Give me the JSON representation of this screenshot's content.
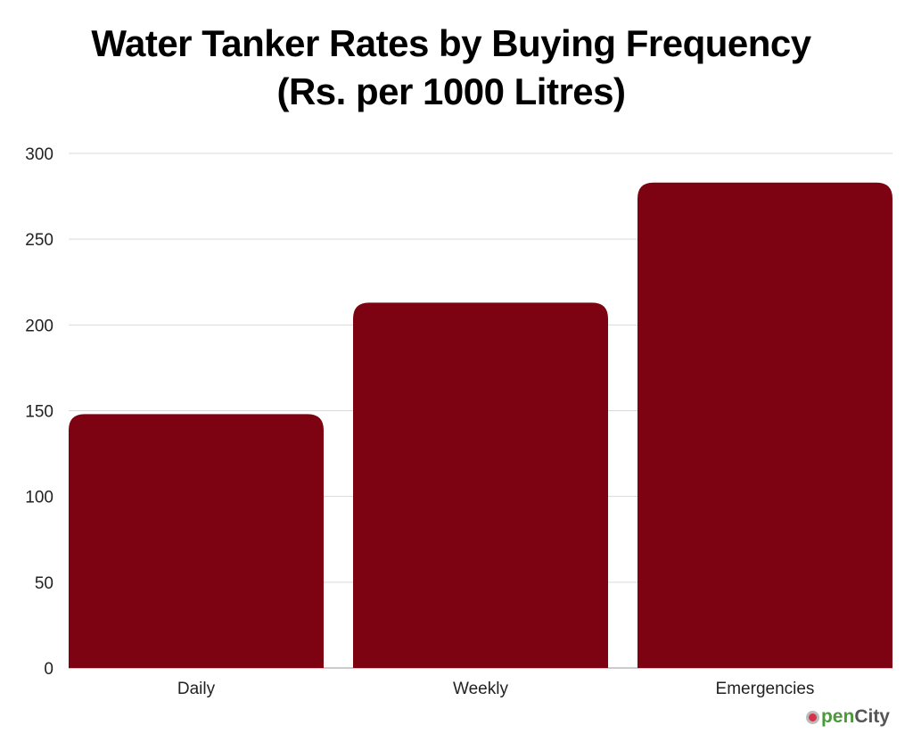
{
  "chart_data": {
    "type": "bar",
    "title": [
      "Water Tanker Rates by Buying Frequency",
      "(Rs. per 1000 Litres)"
    ],
    "categories": [
      "Daily",
      "Weekly",
      "Emergencies"
    ],
    "values": [
      148,
      213,
      283
    ],
    "xlabel": "",
    "ylabel": "",
    "ylim": [
      0,
      300
    ],
    "yticks": [
      0,
      50,
      100,
      150,
      200,
      250,
      300
    ],
    "grid": true,
    "bar_color": "#7d0313"
  },
  "logo": {
    "text_a": "pen",
    "text_b": "City",
    "full": "OpenCity"
  }
}
